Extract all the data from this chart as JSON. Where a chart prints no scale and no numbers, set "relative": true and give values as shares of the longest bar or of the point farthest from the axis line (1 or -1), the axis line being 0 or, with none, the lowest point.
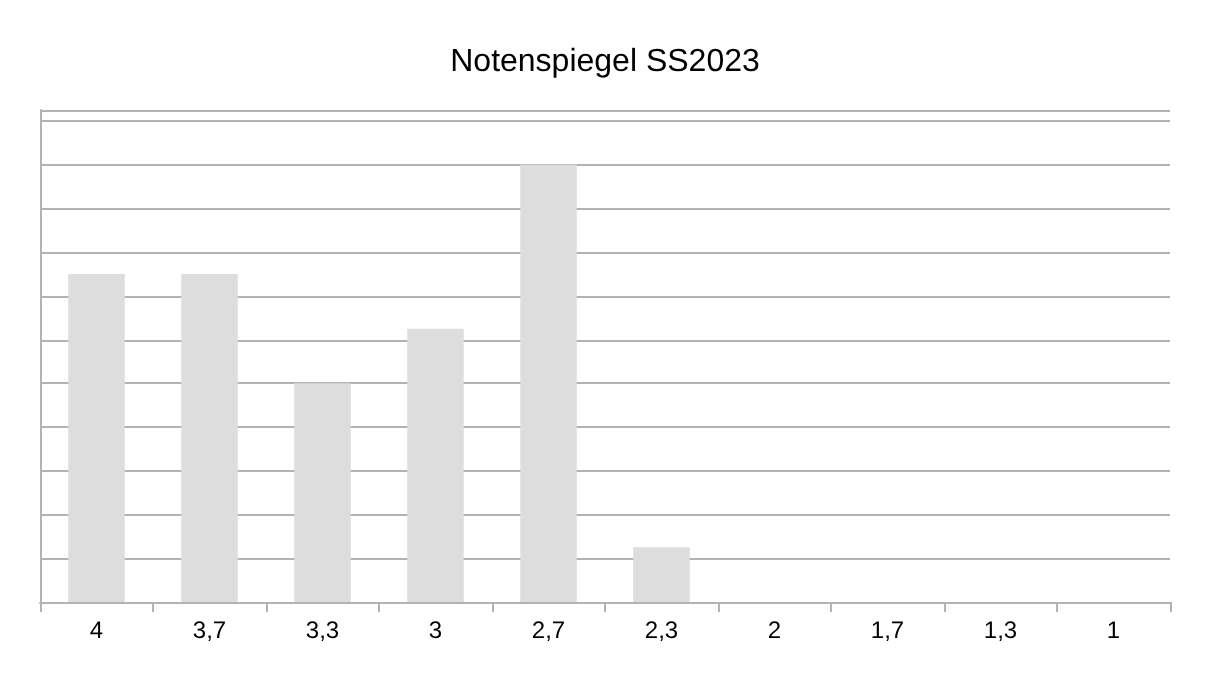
{
  "chart_data": {
    "type": "bar",
    "title": "Notenspiegel SS2023",
    "categories": [
      "4",
      "3,7",
      "3,3",
      "3",
      "2,7",
      "2,3",
      "2",
      "1,7",
      "1,3",
      "1"
    ],
    "values": [
      0.75,
      0.75,
      0.5,
      0.625,
      1,
      0.125,
      0,
      0,
      0,
      0
    ],
    "color": "#dddddd",
    "relative": true,
    "grid": true
  }
}
